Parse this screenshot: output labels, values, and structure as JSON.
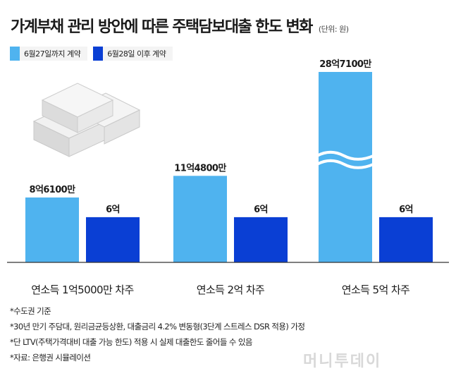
{
  "title": "가계부채 관리 방안에 따른 주택담보대출 한도 변화",
  "unit": "(단위: 원)",
  "colors": {
    "before": "#4fb3ef",
    "after": "#0a3fd4"
  },
  "chart_data": {
    "type": "bar",
    "categories": [
      "연소득 1억5000만 차주",
      "연소득 2억 차주",
      "연소득 5억 차주"
    ],
    "series": [
      {
        "name": "6월27일까지 계약",
        "values": [
          86100,
          114800,
          287100
        ]
      },
      {
        "name": "6월28일 이후 계약",
        "values": [
          60000,
          60000,
          60000
        ]
      }
    ],
    "value_labels": [
      [
        "8억6100만",
        "11억4800만",
        "28억7100만"
      ],
      [
        "6억",
        "6억",
        "6억"
      ]
    ],
    "axis_break": "연소득 5억 차주",
    "ylabel": "",
    "legend_position": "top-left"
  },
  "notes": [
    "*수도권 기준",
    "*30년 만기 주담대, 원리금균등상환, 대출금리 4.2% 변동형(3단계 스트레스 DSR 적용) 가정",
    "*단 LTV(주택가격대비 대출 가능 한도) 적용 시 실제 대출한도 줄어들 수 있음",
    "*자료: 은행권 시뮬레이션"
  ],
  "watermark": "머니투데이"
}
